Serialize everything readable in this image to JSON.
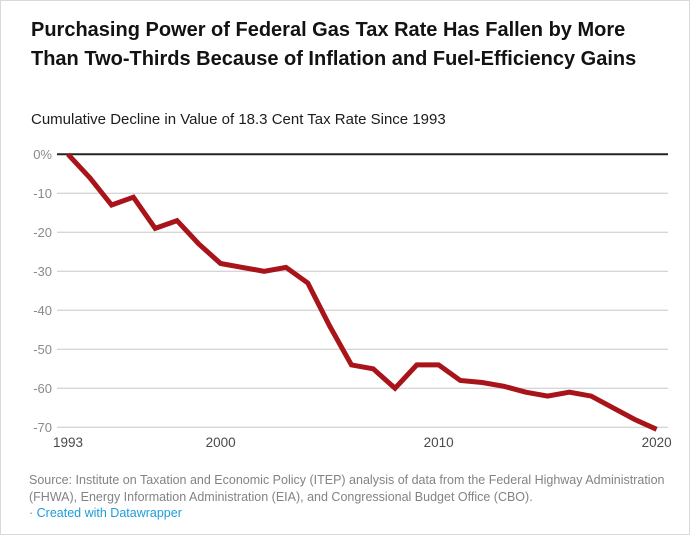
{
  "header": {
    "title": "Purchasing Power of Federal Gas Tax Rate Has Fallen by More Than Two-Thirds Because of Inflation and Fuel-Efficiency Gains",
    "subtitle": "Cumulative Decline in Value of 18.3 Cent Tax Rate Since 1993"
  },
  "chart_data": {
    "type": "line",
    "title": "Purchasing Power of Federal Gas Tax Rate Has Fallen by More Than Two-Thirds Because of Inflation and Fuel-Efficiency Gains",
    "subtitle": "Cumulative Decline in Value of 18.3 Cent Tax Rate Since 1993",
    "x": [
      1993,
      1994,
      1995,
      1996,
      1997,
      1998,
      1999,
      2000,
      2001,
      2002,
      2003,
      2004,
      2005,
      2006,
      2007,
      2008,
      2009,
      2010,
      2011,
      2012,
      2013,
      2014,
      2015,
      2016,
      2017,
      2018,
      2019,
      2020
    ],
    "values": [
      0,
      -6,
      -13,
      -11,
      -19,
      -17,
      -23,
      -28,
      -29,
      -30,
      -29,
      -33,
      -44,
      -54,
      -55,
      -60,
      -54,
      -54,
      -58,
      -58.5,
      -59.5,
      -61,
      -62,
      -61,
      -62,
      -65,
      -68,
      -70.5
    ],
    "x_ticks": [
      {
        "value": 1993,
        "label": "1993"
      },
      {
        "value": 2000,
        "label": "2000"
      },
      {
        "value": 2010,
        "label": "2010"
      },
      {
        "value": 2020,
        "label": "2020"
      }
    ],
    "y_ticks": [
      {
        "value": 0,
        "label": "0%"
      },
      {
        "value": -10,
        "label": "-10"
      },
      {
        "value": -20,
        "label": "-20"
      },
      {
        "value": -30,
        "label": "-30"
      },
      {
        "value": -40,
        "label": "-40"
      },
      {
        "value": -50,
        "label": "-50"
      },
      {
        "value": -60,
        "label": "-60"
      },
      {
        "value": -70,
        "label": "-70"
      }
    ],
    "xlim": [
      1993,
      2020
    ],
    "ylim": [
      -70,
      0
    ],
    "grid": "horizontal",
    "legend": "none",
    "line_color": "#a81419",
    "zero_line_color": "#242424",
    "grid_color": "#d6d6d6",
    "y_tick_color": "#8a8a8a",
    "x_tick_color": "#4a4a4a"
  },
  "footer": {
    "source_text": "Source: Institute on Taxation and Economic Policy (ITEP) analysis of data from the Federal Highway Administration (FHWA), Energy Information Administration (EIA), and Congressional Budget Office (CBO).",
    "bullet": "·",
    "attribution": "Created with Datawrapper"
  }
}
